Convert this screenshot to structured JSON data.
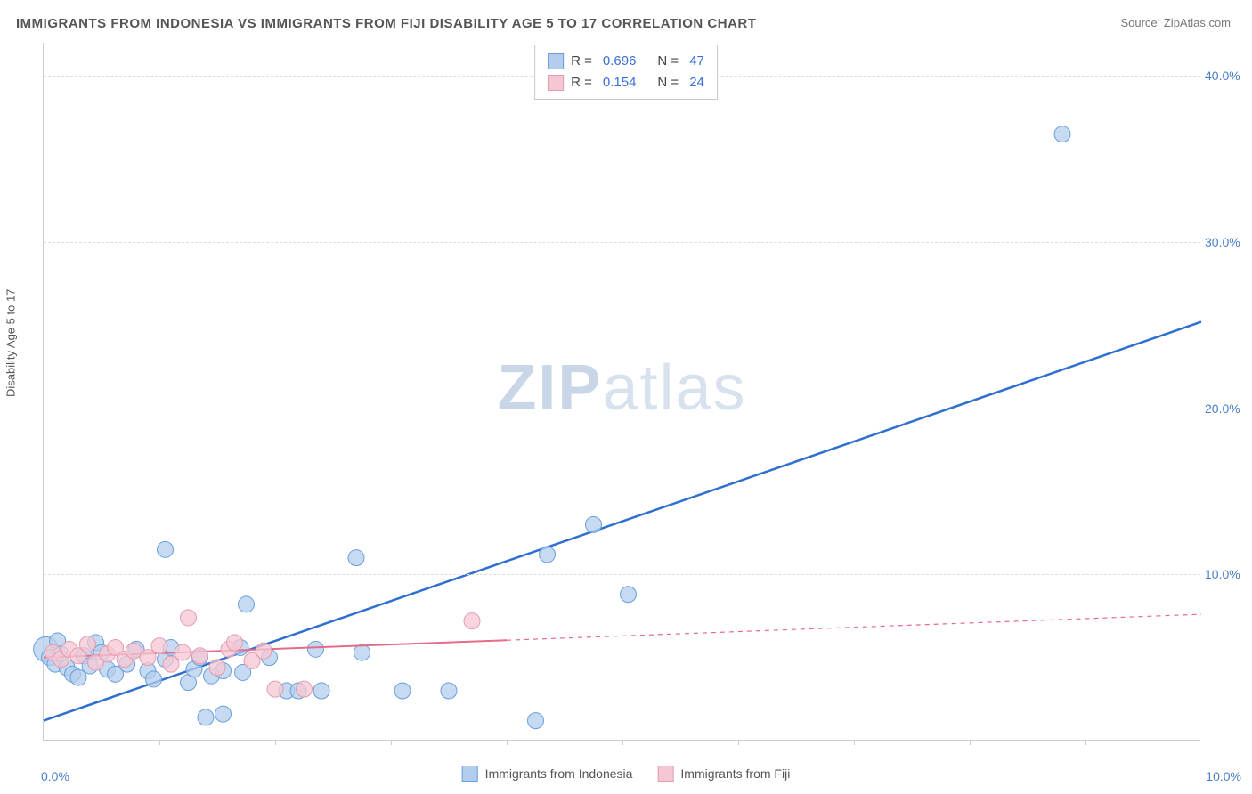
{
  "title": "IMMIGRANTS FROM INDONESIA VS IMMIGRANTS FROM FIJI DISABILITY AGE 5 TO 17 CORRELATION CHART",
  "source": "Source: ZipAtlas.com",
  "watermark_bold": "ZIP",
  "watermark_rest": "atlas",
  "yaxis_title": "Disability Age 5 to 17",
  "chart": {
    "type": "scatter",
    "background_color": "#ffffff",
    "grid_color": "#dddddd",
    "axis_color": "#cccccc",
    "tick_label_color": "#4a7ec9",
    "xlim": [
      0,
      10
    ],
    "ylim": [
      0,
      42
    ],
    "yticks": [
      10,
      20,
      30,
      40
    ],
    "ytick_labels": [
      "10.0%",
      "20.0%",
      "30.0%",
      "40.0%"
    ],
    "x_start_label": "0.0%",
    "x_end_label": "10.0%",
    "xticks": [
      1,
      2,
      3,
      4,
      5,
      6,
      7,
      8,
      9
    ],
    "series": [
      {
        "name": "Immigrants from Indonesia",
        "swatch_fill": "#b3cdee",
        "swatch_border": "#6a9edb",
        "marker_fill": "#b3cdee",
        "marker_stroke": "#6a9edb",
        "marker_radius": 9,
        "marker_opacity": 0.75,
        "line_color": "#2f6fd0",
        "line_width": 2.5,
        "line_dash": "none",
        "r_label": "R =",
        "r_value": "0.696",
        "n_label": "N =",
        "n_value": "47",
        "trend": {
          "x1": 0,
          "y1": 1.2,
          "x2": 10,
          "y2": 25.2,
          "solid_until_x": 10
        },
        "points": [
          {
            "x": 0.02,
            "y": 5.5,
            "r": 14
          },
          {
            "x": 0.05,
            "y": 5.0
          },
          {
            "x": 0.1,
            "y": 4.6
          },
          {
            "x": 0.12,
            "y": 6.0
          },
          {
            "x": 0.15,
            "y": 5.2
          },
          {
            "x": 0.2,
            "y": 4.4
          },
          {
            "x": 0.25,
            "y": 4.0
          },
          {
            "x": 0.3,
            "y": 3.8
          },
          {
            "x": 0.35,
            "y": 5.1
          },
          {
            "x": 0.4,
            "y": 4.5
          },
          {
            "x": 0.45,
            "y": 5.9
          },
          {
            "x": 0.5,
            "y": 5.3
          },
          {
            "x": 0.55,
            "y": 4.3
          },
          {
            "x": 0.62,
            "y": 4.0
          },
          {
            "x": 0.72,
            "y": 4.6
          },
          {
            "x": 0.8,
            "y": 5.5
          },
          {
            "x": 0.9,
            "y": 4.2
          },
          {
            "x": 0.95,
            "y": 3.7
          },
          {
            "x": 1.05,
            "y": 4.9
          },
          {
            "x": 1.1,
            "y": 5.6
          },
          {
            "x": 1.05,
            "y": 11.5
          },
          {
            "x": 1.25,
            "y": 3.5
          },
          {
            "x": 1.3,
            "y": 4.3
          },
          {
            "x": 1.35,
            "y": 5.0
          },
          {
            "x": 1.4,
            "y": 1.4
          },
          {
            "x": 1.45,
            "y": 3.9
          },
          {
            "x": 1.55,
            "y": 4.2
          },
          {
            "x": 1.55,
            "y": 1.6
          },
          {
            "x": 1.7,
            "y": 5.6
          },
          {
            "x": 1.72,
            "y": 4.1
          },
          {
            "x": 1.75,
            "y": 8.2
          },
          {
            "x": 1.95,
            "y": 5.0
          },
          {
            "x": 2.1,
            "y": 3.0
          },
          {
            "x": 2.2,
            "y": 3.0
          },
          {
            "x": 2.35,
            "y": 5.5
          },
          {
            "x": 2.4,
            "y": 3.0
          },
          {
            "x": 2.7,
            "y": 11.0
          },
          {
            "x": 2.75,
            "y": 5.3
          },
          {
            "x": 3.1,
            "y": 3.0
          },
          {
            "x": 3.5,
            "y": 3.0
          },
          {
            "x": 4.25,
            "y": 1.2
          },
          {
            "x": 4.35,
            "y": 11.2
          },
          {
            "x": 4.75,
            "y": 13.0
          },
          {
            "x": 5.05,
            "y": 8.8
          },
          {
            "x": 8.8,
            "y": 36.5
          }
        ]
      },
      {
        "name": "Immigrants from Fiji",
        "swatch_fill": "#f5c7d3",
        "swatch_border": "#e19db0",
        "marker_fill": "#f5c7d3",
        "marker_stroke": "#e19db0",
        "marker_radius": 9,
        "marker_opacity": 0.75,
        "line_color": "#e56b8a",
        "line_width": 2,
        "line_dash": "5,5",
        "r_label": "R =",
        "r_value": "0.154",
        "n_label": "N =",
        "n_value": "24",
        "trend": {
          "x1": 0,
          "y1": 5.0,
          "x2": 10,
          "y2": 7.6,
          "solid_until_x": 4.0
        },
        "points": [
          {
            "x": 0.08,
            "y": 5.3
          },
          {
            "x": 0.15,
            "y": 4.9
          },
          {
            "x": 0.22,
            "y": 5.5
          },
          {
            "x": 0.3,
            "y": 5.1
          },
          {
            "x": 0.38,
            "y": 5.8
          },
          {
            "x": 0.45,
            "y": 4.7
          },
          {
            "x": 0.55,
            "y": 5.2
          },
          {
            "x": 0.62,
            "y": 5.6
          },
          {
            "x": 0.7,
            "y": 4.9
          },
          {
            "x": 0.78,
            "y": 5.4
          },
          {
            "x": 0.9,
            "y": 5.0
          },
          {
            "x": 1.0,
            "y": 5.7
          },
          {
            "x": 1.1,
            "y": 4.6
          },
          {
            "x": 1.2,
            "y": 5.3
          },
          {
            "x": 1.25,
            "y": 7.4
          },
          {
            "x": 1.35,
            "y": 5.1
          },
          {
            "x": 1.5,
            "y": 4.4
          },
          {
            "x": 1.6,
            "y": 5.5
          },
          {
            "x": 1.65,
            "y": 5.9
          },
          {
            "x": 1.8,
            "y": 4.8
          },
          {
            "x": 1.9,
            "y": 5.4
          },
          {
            "x": 2.0,
            "y": 3.1
          },
          {
            "x": 2.25,
            "y": 3.1
          },
          {
            "x": 3.7,
            "y": 7.2
          }
        ]
      }
    ]
  }
}
